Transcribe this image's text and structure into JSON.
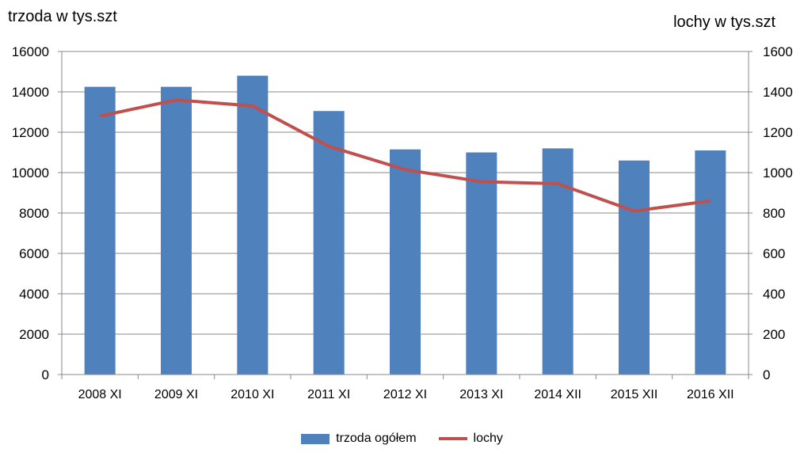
{
  "chart_data": {
    "type": "bar",
    "left_axis_title": "trzoda w tys.szt",
    "right_axis_title": "lochy w tys.szt",
    "categories": [
      "2008 XI",
      "2009 XI",
      "2010 XI",
      "2011 XI",
      "2012 XI",
      "2013 XI",
      "2014 XII",
      "2015 XII",
      "2016 XII"
    ],
    "series": [
      {
        "name": "trzoda ogółem",
        "type": "bar",
        "axis": "left",
        "color": "#4f81bd",
        "values": [
          14250,
          14250,
          14800,
          13050,
          11150,
          11000,
          11200,
          10600,
          11100
        ]
      },
      {
        "name": "lochy",
        "type": "line",
        "axis": "right",
        "color": "#c0504d",
        "values": [
          1280,
          1360,
          1330,
          1130,
          1015,
          955,
          945,
          810,
          860
        ]
      }
    ],
    "y_left": {
      "min": 0,
      "max": 16000,
      "step": 2000
    },
    "y_right": {
      "min": 0,
      "max": 1600,
      "step": 200
    },
    "grid": true,
    "legend_position": "bottom"
  }
}
